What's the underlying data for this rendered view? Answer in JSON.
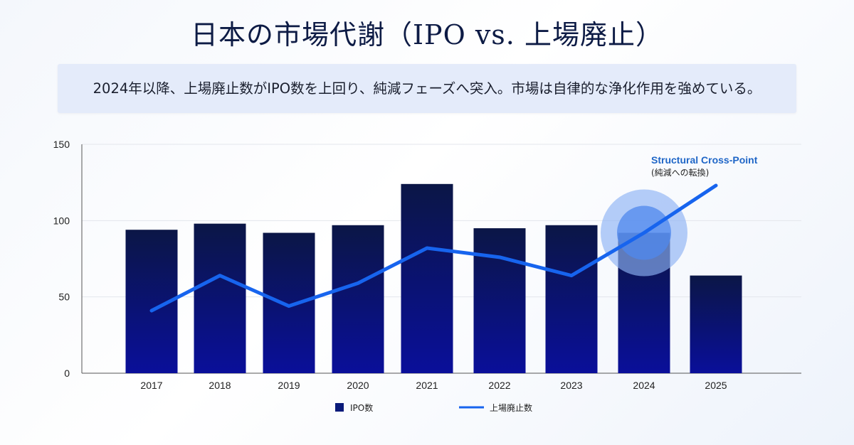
{
  "title": "日本の市場代謝（IPO vs. 上場廃止）",
  "subtitle": "2024年以降、上場廃止数がIPO数を上回り、純減フェーズへ突入。市場は自律的な浄化作用を強めている。",
  "chart_data": {
    "type": "bar",
    "categories": [
      "2017",
      "2018",
      "2019",
      "2020",
      "2021",
      "2022",
      "2023",
      "2024",
      "2025"
    ],
    "ylim": [
      0,
      150
    ],
    "yticks": [
      0,
      50,
      100,
      150
    ],
    "grid": true,
    "legend_position": "bottom",
    "series": [
      {
        "name": "IPO数",
        "type": "bar",
        "color": "#0a1a7a",
        "values": [
          94,
          98,
          92,
          97,
          124,
          95,
          97,
          92,
          64
        ]
      },
      {
        "name": "上場廃止数",
        "type": "line",
        "color": "#1764ee",
        "values": [
          41,
          64,
          44,
          59,
          82,
          76,
          64,
          92,
          123
        ]
      }
    ],
    "annotation": {
      "title": "Structural Cross-Point",
      "subtitle": "(純減への転換)",
      "category": "2024",
      "value": 92
    }
  }
}
